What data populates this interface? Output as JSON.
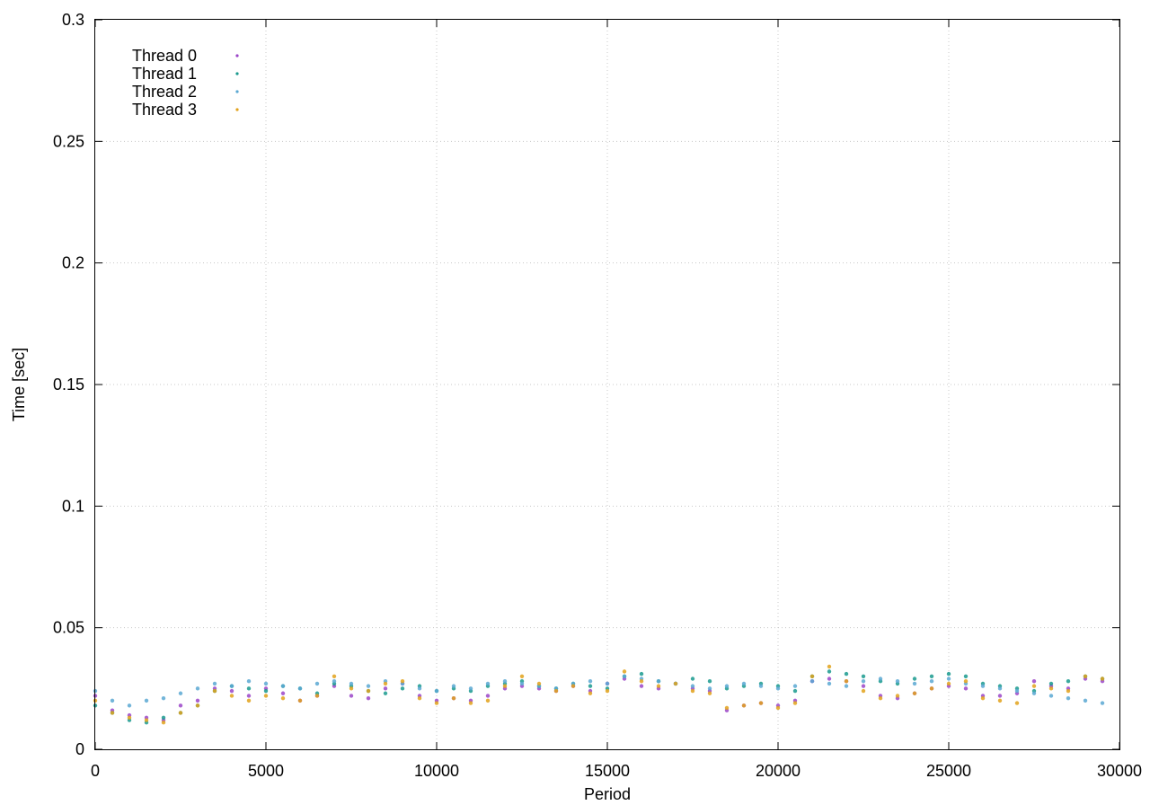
{
  "chart_data": {
    "type": "scatter",
    "title": "",
    "xlabel": "Period",
    "ylabel": "Time [sec]",
    "xlim": [
      0,
      30000
    ],
    "ylim": [
      0,
      0.3
    ],
    "xticks": [
      0,
      5000,
      10000,
      15000,
      20000,
      25000,
      30000
    ],
    "yticks": [
      0,
      0.05,
      0.1,
      0.15,
      0.2,
      0.25,
      0.3
    ],
    "xtick_labels": [
      "0",
      "5000",
      "10000",
      "15000",
      "20000",
      "25000",
      "30000"
    ],
    "ytick_labels": [
      "0",
      "0.05",
      "0.1",
      "0.15",
      "0.2",
      "0.25",
      "0.3"
    ],
    "grid": true,
    "legend_position": "top-left",
    "series": [
      {
        "name": "Thread 0",
        "color": "#9b45c8",
        "x": [
          0,
          500,
          1000,
          1500,
          2000,
          2500,
          3000,
          3500,
          4000,
          4500,
          5000,
          5500,
          6000,
          6500,
          7000,
          7500,
          8000,
          8500,
          9000,
          9500,
          10000,
          10500,
          11000,
          11500,
          12000,
          12500,
          13000,
          13500,
          14000,
          14500,
          15000,
          15500,
          16000,
          16500,
          17000,
          17500,
          18000,
          18500,
          19000,
          19500,
          20000,
          20500,
          21000,
          21500,
          22000,
          22500,
          23000,
          23500,
          24000,
          24500,
          25000,
          25500,
          26000,
          26500,
          27000,
          27500,
          28000,
          28500,
          29000,
          29500
        ],
        "y": [
          0.022,
          0.016,
          0.014,
          0.013,
          0.012,
          0.018,
          0.02,
          0.025,
          0.024,
          0.022,
          0.025,
          0.023,
          0.02,
          0.022,
          0.026,
          0.022,
          0.021,
          0.025,
          0.027,
          0.022,
          0.02,
          0.021,
          0.02,
          0.022,
          0.025,
          0.026,
          0.025,
          0.024,
          0.026,
          0.024,
          0.027,
          0.029,
          0.026,
          0.025,
          0.027,
          0.025,
          0.024,
          0.016,
          0.018,
          0.019,
          0.018,
          0.02,
          0.028,
          0.029,
          0.028,
          0.026,
          0.022,
          0.021,
          0.023,
          0.025,
          0.026,
          0.025,
          0.022,
          0.022,
          0.023,
          0.028,
          0.026,
          0.025,
          0.029,
          0.028
        ]
      },
      {
        "name": "Thread 1",
        "color": "#1a9a8e",
        "x": [
          0,
          500,
          1000,
          1500,
          2000,
          2500,
          3000,
          3500,
          4000,
          4500,
          5000,
          5500,
          6000,
          6500,
          7000,
          7500,
          8000,
          8500,
          9000,
          9500,
          10000,
          10500,
          11000,
          11500,
          12000,
          12500,
          13000,
          13500,
          14000,
          14500,
          15000,
          15500,
          16000,
          16500,
          17000,
          17500,
          18000,
          18500,
          19000,
          19500,
          20000,
          20500,
          21000,
          21500,
          22000,
          22500,
          23000,
          23500,
          24000,
          24500,
          25000,
          25500,
          26000,
          26500,
          27000,
          27500,
          28000,
          28500,
          29000,
          29500
        ],
        "y": [
          0.018,
          0.015,
          0.012,
          0.011,
          0.013,
          0.015,
          0.018,
          0.024,
          0.026,
          0.025,
          0.024,
          0.026,
          0.025,
          0.023,
          0.027,
          0.026,
          0.024,
          0.023,
          0.025,
          0.026,
          0.024,
          0.025,
          0.024,
          0.026,
          0.027,
          0.028,
          0.026,
          0.025,
          0.027,
          0.026,
          0.025,
          0.03,
          0.031,
          0.028,
          0.027,
          0.029,
          0.028,
          0.025,
          0.026,
          0.027,
          0.026,
          0.024,
          0.03,
          0.032,
          0.031,
          0.03,
          0.028,
          0.027,
          0.029,
          0.03,
          0.031,
          0.03,
          0.027,
          0.026,
          0.025,
          0.024,
          0.027,
          0.028,
          0.03,
          0.029
        ]
      },
      {
        "name": "Thread 2",
        "color": "#5aa8d2",
        "x": [
          0,
          500,
          1000,
          1500,
          2000,
          2500,
          3000,
          3500,
          4000,
          4500,
          5000,
          5500,
          6000,
          6500,
          7000,
          7500,
          8000,
          8500,
          9000,
          9500,
          10000,
          10500,
          11000,
          11500,
          12000,
          12500,
          13000,
          13500,
          14000,
          14500,
          15000,
          15500,
          16000,
          16500,
          17000,
          17500,
          18000,
          18500,
          19000,
          19500,
          20000,
          20500,
          21000,
          21500,
          22000,
          22500,
          23000,
          23500,
          24000,
          24500,
          25000,
          25500,
          26000,
          26500,
          27000,
          27500,
          28000,
          28500,
          29000,
          29500
        ],
        "y": [
          0.024,
          0.02,
          0.018,
          0.02,
          0.021,
          0.023,
          0.025,
          0.027,
          0.026,
          0.028,
          0.027,
          0.026,
          0.025,
          0.027,
          0.028,
          0.027,
          0.026,
          0.028,
          0.027,
          0.025,
          0.024,
          0.026,
          0.025,
          0.027,
          0.028,
          0.027,
          0.026,
          0.025,
          0.027,
          0.028,
          0.027,
          0.03,
          0.029,
          0.028,
          0.027,
          0.026,
          0.025,
          0.026,
          0.027,
          0.026,
          0.025,
          0.026,
          0.028,
          0.027,
          0.026,
          0.028,
          0.029,
          0.028,
          0.027,
          0.028,
          0.029,
          0.027,
          0.026,
          0.025,
          0.024,
          0.023,
          0.022,
          0.021,
          0.02,
          0.019
        ]
      },
      {
        "name": "Thread 3",
        "color": "#e2a21b",
        "x": [
          0,
          500,
          1000,
          1500,
          2000,
          2500,
          3000,
          3500,
          4000,
          4500,
          5000,
          5500,
          6000,
          6500,
          7000,
          7500,
          8000,
          8500,
          9000,
          9500,
          10000,
          10500,
          11000,
          11500,
          12000,
          12500,
          13000,
          13500,
          14000,
          14500,
          15000,
          15500,
          16000,
          16500,
          17000,
          17500,
          18000,
          18500,
          19000,
          19500,
          20000,
          20500,
          21000,
          21500,
          22000,
          22500,
          23000,
          23500,
          24000,
          24500,
          25000,
          25500,
          26000,
          26500,
          27000,
          27500,
          28000,
          28500,
          29000,
          29500
        ],
        "y": [
          0.02,
          0.015,
          0.013,
          0.012,
          0.011,
          0.015,
          0.018,
          0.024,
          0.022,
          0.02,
          0.022,
          0.021,
          0.02,
          0.022,
          0.03,
          0.025,
          0.024,
          0.027,
          0.028,
          0.021,
          0.019,
          0.021,
          0.019,
          0.02,
          0.026,
          0.03,
          0.027,
          0.024,
          0.026,
          0.023,
          0.024,
          0.032,
          0.028,
          0.026,
          0.027,
          0.024,
          0.023,
          0.017,
          0.018,
          0.019,
          0.017,
          0.019,
          0.03,
          0.034,
          0.028,
          0.024,
          0.021,
          0.022,
          0.023,
          0.025,
          0.027,
          0.028,
          0.021,
          0.02,
          0.019,
          0.026,
          0.025,
          0.024,
          0.03,
          0.029
        ]
      }
    ]
  }
}
